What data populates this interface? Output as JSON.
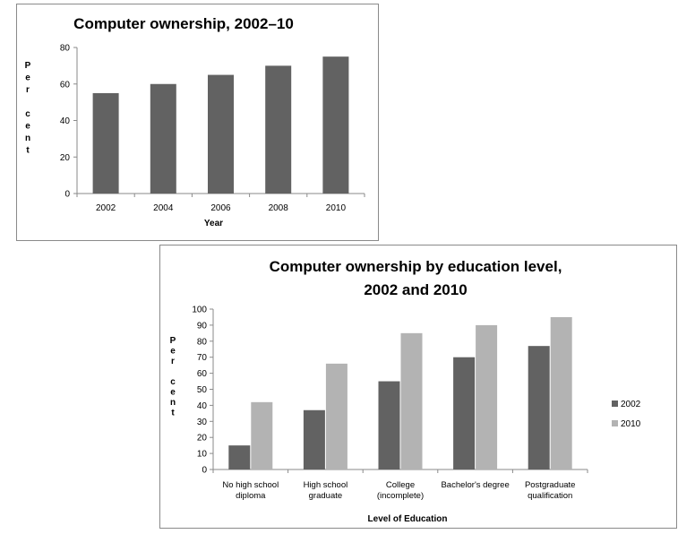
{
  "chart_data": [
    {
      "type": "bar",
      "title": "Computer ownership, 2002–10",
      "xlabel": "Year",
      "ylabel": "Per cent",
      "ylim": [
        0,
        80
      ],
      "yticks": [
        0,
        20,
        40,
        60,
        80
      ],
      "categories": [
        "2002",
        "2004",
        "2006",
        "2008",
        "2010"
      ],
      "series": [
        {
          "values": [
            55,
            60,
            65,
            70,
            75
          ],
          "color": "#626262"
        }
      ],
      "grid": false,
      "legend": "none"
    },
    {
      "type": "bar",
      "title_lines": [
        "Computer ownership by education level,",
        "2002 and 2010"
      ],
      "xlabel": "Level of Education",
      "ylabel": "Per cent",
      "ylim": [
        0,
        100
      ],
      "yticks": [
        0,
        10,
        20,
        30,
        40,
        50,
        60,
        70,
        80,
        90,
        100
      ],
      "categories": [
        [
          "No high school",
          "diploma"
        ],
        [
          "High school",
          "graduate"
        ],
        [
          "College",
          "(incomplete)"
        ],
        [
          "Bachelor's degree"
        ],
        [
          "Postgraduate",
          "qualification"
        ]
      ],
      "series": [
        {
          "name": "2002",
          "values": [
            15,
            37,
            55,
            70,
            77
          ],
          "color": "#626262"
        },
        {
          "name": "2010",
          "values": [
            42,
            66,
            85,
            90,
            95
          ],
          "color": "#b3b3b3"
        }
      ],
      "grid": false,
      "legend": "right"
    }
  ]
}
